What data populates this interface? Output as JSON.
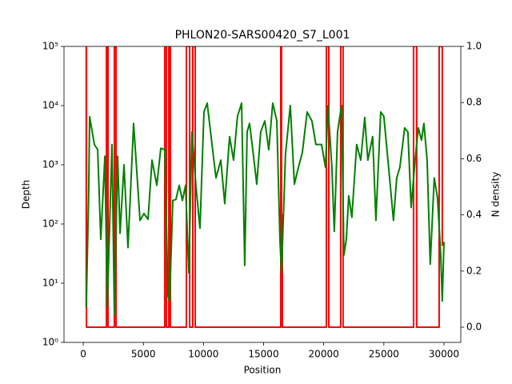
{
  "chart_data": {
    "type": "line",
    "title": "PHLON20-SARS00420_S7_L001",
    "xlabel": "Position",
    "ylabel": "Depth",
    "y2label": "N density",
    "ylabel_color": "green",
    "y2label_color": "red",
    "xlim": [
      -1600,
      31400
    ],
    "xticks": [
      0,
      5000,
      10000,
      15000,
      20000,
      25000,
      30000
    ],
    "ylim": [
      1,
      100000
    ],
    "ylog": true,
    "yticks": [
      {
        "value": 1,
        "label": "10⁰"
      },
      {
        "value": 10,
        "label": "10¹"
      },
      {
        "value": 100,
        "label": "10²"
      },
      {
        "value": 1000,
        "label": "10³"
      },
      {
        "value": 10000,
        "label": "10⁴"
      },
      {
        "value": 100000,
        "label": "10⁵"
      }
    ],
    "y2lim": [
      -0.054,
      1.0
    ],
    "y2ticks": [
      {
        "value": 0,
        "label": "0.0"
      },
      0.2,
      0.4,
      0.6,
      0.8,
      {
        "value": 1,
        "label": "1.0"
      }
    ],
    "series": [
      {
        "color": "green",
        "x": [
          250,
          450,
          530,
          930,
          1200,
          1460,
          1800,
          2000,
          2390,
          2590,
          2860,
          3060,
          3390,
          3720,
          4190,
          4720,
          5050,
          5390,
          5720,
          6120,
          6450,
          6780,
          7050,
          7180,
          7450,
          7710,
          7980,
          8250,
          8510,
          8780,
          9040,
          9380,
          9710,
          10040,
          10310,
          10710,
          11040,
          11440,
          11770,
          12170,
          12500,
          12830,
          13170,
          13430,
          13630,
          13830,
          14100,
          14430,
          14760,
          15100,
          15430,
          15760,
          16100,
          16360,
          16490,
          16820,
          17220,
          17560,
          17890,
          18220,
          18620,
          19020,
          19350,
          19820,
          20150,
          20350,
          20680,
          20880,
          21150,
          21480,
          21680,
          21880,
          22080,
          22340,
          22740,
          23080,
          23410,
          23670,
          24070,
          24340,
          24740,
          25000,
          25340,
          25800,
          26070,
          26330,
          26730,
          27000,
          27270,
          27600,
          27860,
          28130,
          28330,
          28600,
          28860,
          29190,
          29460,
          29730,
          29860,
          30000
        ],
        "values": [
          4,
          300,
          6500,
          2200,
          1800,
          55,
          1400,
          4,
          2200,
          3,
          1400,
          70,
          1000,
          40,
          5000,
          115,
          150,
          120,
          1200,
          450,
          1900,
          1800,
          6,
          5,
          250,
          260,
          450,
          250,
          450,
          15,
          3600,
          420,
          85,
          7800,
          11000,
          2200,
          600,
          1200,
          220,
          3000,
          1200,
          6600,
          11000,
          20,
          3600,
          5000,
          1800,
          470,
          3600,
          5500,
          1800,
          11000,
          5500,
          54,
          15,
          1500,
          10000,
          470,
          900,
          1600,
          7800,
          5500,
          2200,
          2200,
          900,
          10000,
          900,
          75,
          3600,
          10000,
          30,
          55,
          300,
          130,
          2200,
          1200,
          6300,
          1200,
          3000,
          115,
          7800,
          6600,
          1200,
          115,
          600,
          900,
          4200,
          3600,
          190,
          1200,
          4200,
          2600,
          5000,
          1200,
          21,
          600,
          280,
          30,
          5,
          50
        ]
      },
      {
        "color": "red",
        "axis": "y2",
        "x": [
          250,
          250,
          270,
          270,
          1930,
          1930,
          2060,
          2060,
          2590,
          2590,
          2730,
          2730,
          6780,
          6780,
          6920,
          6920,
          7120,
          7120,
          7250,
          7250,
          8580,
          8580,
          8850,
          8850,
          9110,
          9110,
          9310,
          9310,
          16430,
          16430,
          16490,
          16490,
          16560,
          16560,
          20220,
          20220,
          20420,
          20420,
          21410,
          21410,
          21610,
          21610,
          27470,
          27470,
          27730,
          27730,
          29600,
          29600,
          29860,
          29860
        ],
        "values": [
          0.07,
          1,
          1,
          0,
          0,
          1,
          1,
          0,
          0,
          1,
          1,
          0,
          0,
          1,
          1,
          0,
          0,
          1,
          1,
          0,
          0,
          1,
          1,
          0,
          0,
          1,
          1,
          0,
          0,
          1,
          1,
          0.4,
          0.4,
          0,
          0,
          1,
          1,
          0,
          0,
          1,
          1,
          0,
          0,
          1,
          1,
          0,
          0,
          1,
          1,
          0.29
        ]
      }
    ]
  }
}
